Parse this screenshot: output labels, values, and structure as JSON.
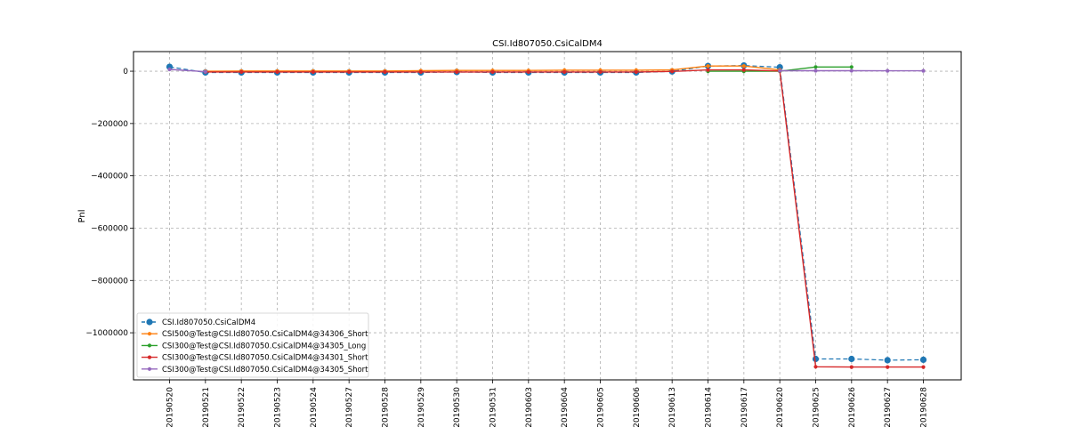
{
  "chart_data": {
    "type": "line",
    "title": "CSI.Id807050.CsiCalDM4",
    "xlabel": "",
    "ylabel": "Pnl",
    "categories": [
      "20190520",
      "20190521",
      "20190522",
      "20190523",
      "20190524",
      "20190527",
      "20190528",
      "20190529",
      "20190530",
      "20190531",
      "20190603",
      "20190604",
      "20190605",
      "20190606",
      "20190613",
      "20190614",
      "20190617",
      "20190620",
      "20190625",
      "20190626",
      "20190627",
      "20190628"
    ],
    "ylim": [
      -1180000,
      75000
    ],
    "yticks": [
      0,
      -200000,
      -400000,
      -600000,
      -800000,
      -1000000
    ],
    "ytick_labels": [
      "0",
      "−200000",
      "−400000",
      "−600000",
      "−800000",
      "−1000000"
    ],
    "grid": true,
    "legend_position": "lower-left",
    "series": [
      {
        "name": "CSI.Id807050.CsiCalDM4",
        "color": "#1f77b4",
        "style": "dashed",
        "marker": "large-circle",
        "values": [
          17000,
          -5000,
          -5000,
          -5000,
          -5000,
          -5000,
          -5000,
          -5000,
          -3000,
          -5000,
          -5000,
          -5000,
          -5000,
          -5000,
          -1000,
          20000,
          22000,
          15000,
          -1100000,
          -1100000,
          -1105000,
          -1103000
        ]
      },
      {
        "name": "CSI500@Test@CSI.Id807050.CsiCalDM4@34306_Short",
        "color": "#ff7f0e",
        "style": "solid",
        "marker": "small-circle",
        "values": [
          null,
          0,
          1000,
          1000,
          1000,
          1000,
          1000,
          2000,
          3000,
          3000,
          3000,
          4000,
          4000,
          4000,
          5000,
          20000,
          20000,
          5000,
          null,
          null,
          null,
          null
        ]
      },
      {
        "name": "CSI300@Test@CSI.Id807050.CsiCalDM4@34305_Long",
        "color": "#2ca02c",
        "style": "solid",
        "marker": "small-circle",
        "values": [
          null,
          null,
          null,
          null,
          null,
          null,
          null,
          null,
          null,
          null,
          null,
          null,
          null,
          null,
          null,
          0,
          0,
          0,
          16000,
          16000,
          null,
          null
        ]
      },
      {
        "name": "CSI300@Test@CSI.Id807050.CsiCalDM4@34301_Short",
        "color": "#d62728",
        "style": "solid",
        "marker": "small-circle",
        "values": [
          null,
          -3000,
          -3000,
          -3000,
          -3000,
          -3000,
          -3000,
          -3000,
          -3000,
          -3000,
          -3000,
          -3000,
          -3000,
          -3000,
          -1000,
          5000,
          5000,
          1000,
          -1130000,
          -1131000,
          -1131000,
          -1131000
        ]
      },
      {
        "name": "CSI300@Test@CSI.Id807050.CsiCalDM4@34305_Short",
        "color": "#9467bd",
        "style": "solid",
        "marker": "small-circle",
        "values": [
          7000,
          -2000,
          null,
          null,
          null,
          null,
          null,
          null,
          null,
          null,
          null,
          null,
          null,
          null,
          null,
          null,
          null,
          2000,
          2000,
          2000,
          1500,
          1500
        ]
      }
    ]
  }
}
